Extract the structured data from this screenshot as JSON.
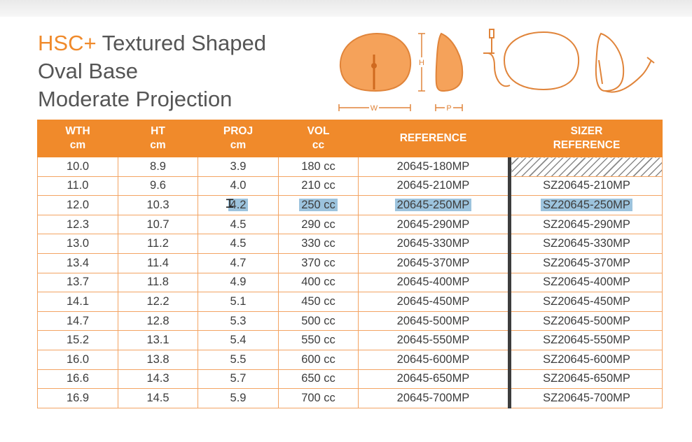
{
  "title": {
    "brand": "HSC",
    "brand_mark": "+",
    "line1_rest": " Textured Shaped",
    "line2": "Oval Base",
    "line3": "Moderate Projection"
  },
  "diagram_labels": {
    "h": "H",
    "w": "W",
    "p": "P"
  },
  "table": {
    "headers": [
      [
        "WTH",
        "cm"
      ],
      [
        "HT",
        "cm"
      ],
      [
        "PROJ",
        "cm"
      ],
      [
        "VOL",
        "cc"
      ],
      [
        "REFERENCE",
        ""
      ],
      [
        "SIZER",
        "REFERENCE"
      ]
    ],
    "rows": [
      [
        "10.0",
        "8.9",
        "3.9",
        "180 cc",
        "20645-180MP",
        ""
      ],
      [
        "11.0",
        "9.6",
        "4.0",
        "210 cc",
        "20645-210MP",
        "SZ20645-210MP"
      ],
      [
        "12.0",
        "10.3",
        "4.2",
        "250 cc",
        "20645-250MP",
        "SZ20645-250MP"
      ],
      [
        "12.3",
        "10.7",
        "4.5",
        "290 cc",
        "20645-290MP",
        "SZ20645-290MP"
      ],
      [
        "13.0",
        "11.2",
        "4.5",
        "330 cc",
        "20645-330MP",
        "SZ20645-330MP"
      ],
      [
        "13.4",
        "11.4",
        "4.7",
        "370 cc",
        "20645-370MP",
        "SZ20645-370MP"
      ],
      [
        "13.7",
        "11.8",
        "4.9",
        "400 cc",
        "20645-400MP",
        "SZ20645-400MP"
      ],
      [
        "14.1",
        "12.2",
        "5.1",
        "450 cc",
        "20645-450MP",
        "SZ20645-450MP"
      ],
      [
        "14.7",
        "12.8",
        "5.3",
        "500 cc",
        "20645-500MP",
        "SZ20645-500MP"
      ],
      [
        "15.2",
        "13.1",
        "5.4",
        "550 cc",
        "20645-550MP",
        "SZ20645-550MP"
      ],
      [
        "16.0",
        "13.8",
        "5.5",
        "600 cc",
        "20645-600MP",
        "SZ20645-600MP"
      ],
      [
        "16.6",
        "14.3",
        "5.7",
        "650 cc",
        "20645-650MP",
        "SZ20645-650MP"
      ],
      [
        "16.9",
        "14.5",
        "5.9",
        "700 cc",
        "20645-700MP",
        "SZ20645-700MP"
      ]
    ],
    "selected_row": 2,
    "selected_from_col": 2,
    "empty_cell_style": "hatched"
  },
  "colors": {
    "accent": "#f08a2b",
    "text": "#555555",
    "selection": "#9cc3dd"
  }
}
